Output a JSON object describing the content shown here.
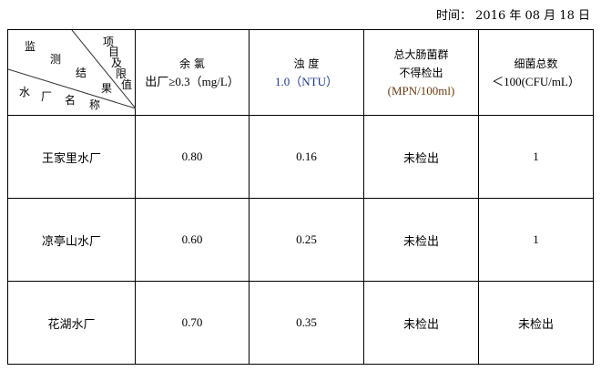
{
  "date": {
    "label": "时间：",
    "value": "2016 年 08 月 18 日"
  },
  "header": {
    "diagonal": {
      "top_right": [
        "项",
        "目",
        "及",
        "限",
        "值"
      ],
      "middle": [
        "监",
        "测",
        "结",
        "果"
      ],
      "bottom_left": [
        "水",
        "厂",
        "名",
        "称"
      ]
    },
    "columns": [
      {
        "line1": "余 氯",
        "line2": "出厂≥0.3（mg/L）"
      },
      {
        "line1": "浊 度",
        "line2": "1.0（NTU）"
      },
      {
        "line1": "总大肠菌群",
        "line2": "不得检出",
        "line3": "(MPN/100ml)"
      },
      {
        "line1": "细菌总数",
        "line2": "＜100(CFU/mL）"
      }
    ]
  },
  "rows": [
    {
      "name": "王家里水厂",
      "chlorine": "0.80",
      "turbidity": "0.16",
      "coliform": "未检出",
      "bacteria": "1"
    },
    {
      "name": "凉亭山水厂",
      "chlorine": "0.60",
      "turbidity": "0.25",
      "coliform": "未检出",
      "bacteria": "1"
    },
    {
      "name": "花湖水厂",
      "chlorine": "0.70",
      "turbidity": "0.35",
      "coliform": "未检出",
      "bacteria": "未检出"
    }
  ]
}
